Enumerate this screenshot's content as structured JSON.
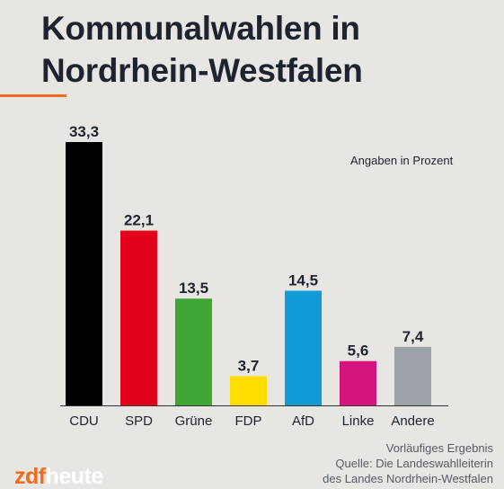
{
  "title": "Kommunalwahlen in Nordrhein-Westfalen",
  "unit_note": "Angaben in Prozent",
  "footnote": {
    "line1": "Vorläufiges Ergebnis",
    "line2": "Quelle: Die Landeswahlleiterin",
    "line3": "des Landes Nordrhein-Westfalen"
  },
  "logo": {
    "part1": "zdf",
    "part2": "heute"
  },
  "colors": {
    "accent": "#f26b1d",
    "text": "#1d2430",
    "background": "#e8e6e3"
  },
  "chart_data": {
    "type": "bar",
    "categories": [
      "CDU",
      "SPD",
      "Grüne",
      "FDP",
      "AfD",
      "Linke",
      "Andere"
    ],
    "values": [
      33.3,
      22.1,
      13.5,
      3.7,
      14.5,
      5.6,
      7.4
    ],
    "value_labels": [
      "33,3",
      "22,1",
      "13,5",
      "3,7",
      "14,5",
      "5,6",
      "7,4"
    ],
    "colors": [
      "#000000",
      "#e3001b",
      "#3fa535",
      "#ffdd00",
      "#119bd6",
      "#d6147f",
      "#9ea3aa"
    ],
    "ylim": [
      0,
      33.3
    ],
    "grid": false,
    "legend": "none"
  }
}
